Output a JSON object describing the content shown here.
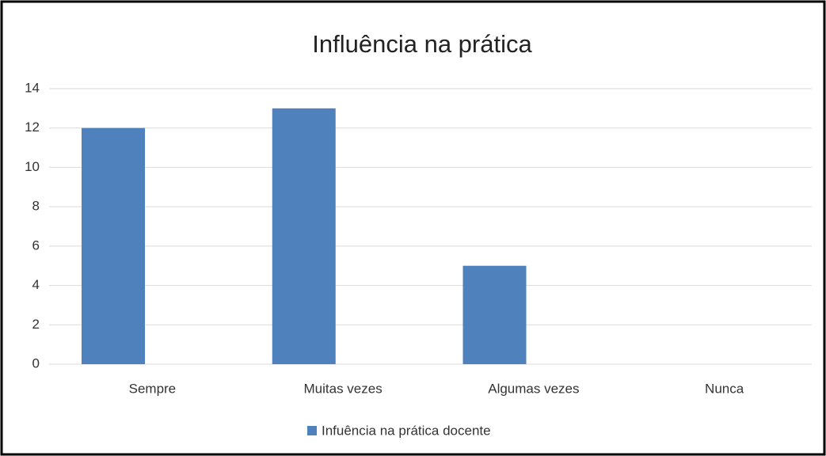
{
  "chart_data": {
    "type": "bar",
    "title": "Influência na prática",
    "categories": [
      "Sempre",
      "Muitas vezes",
      "Algumas vezes",
      "Nunca"
    ],
    "series": [
      {
        "name": "Infuência na prática docente",
        "color": "#4f81bd",
        "values": [
          12,
          13,
          5,
          0
        ]
      }
    ],
    "ylim": [
      0,
      14
    ],
    "yticks": [
      0,
      2,
      4,
      6,
      8,
      10,
      12,
      14
    ],
    "grid": true,
    "legend": "bottom"
  }
}
